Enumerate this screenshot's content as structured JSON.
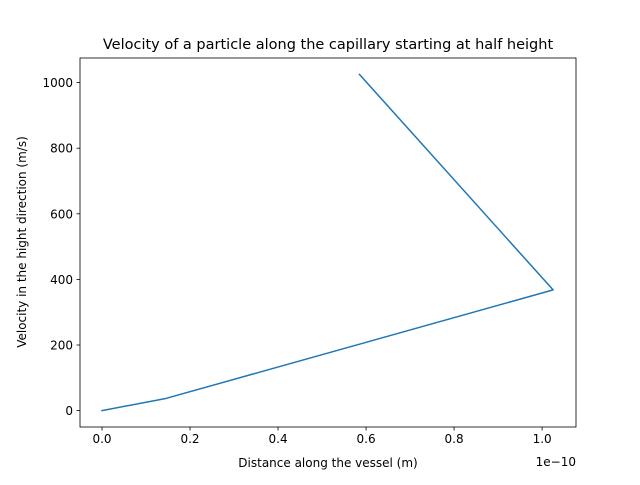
{
  "chart_data": {
    "type": "line",
    "title": "Velocity of a particle along the capillary starting at half height",
    "xlabel": "Distance along the vessel (m)",
    "ylabel": "Velocity in the hight direction (m/s)",
    "x_offset_label": "1e−10",
    "x_scale": 1e-10,
    "xlim": [
      -5e-12,
      1.077e-10
    ],
    "ylim": [
      -50,
      1075
    ],
    "x_ticks": [
      0,
      2e-11,
      4e-11,
      6e-11,
      8e-11,
      1e-10
    ],
    "x_tick_labels": [
      "0.0",
      "0.2",
      "0.4",
      "0.6",
      "0.8",
      "1.0"
    ],
    "y_ticks": [
      0,
      200,
      400,
      600,
      800,
      1000
    ],
    "y_tick_labels": [
      "0",
      "200",
      "400",
      "600",
      "800",
      "1000"
    ],
    "grid": false,
    "series": [
      {
        "color": "#1f77b4",
        "x": [
          0,
          1.45e-11,
          1.025e-10,
          5.85e-11
        ],
        "y": [
          0,
          37,
          368,
          1025
        ]
      }
    ]
  }
}
